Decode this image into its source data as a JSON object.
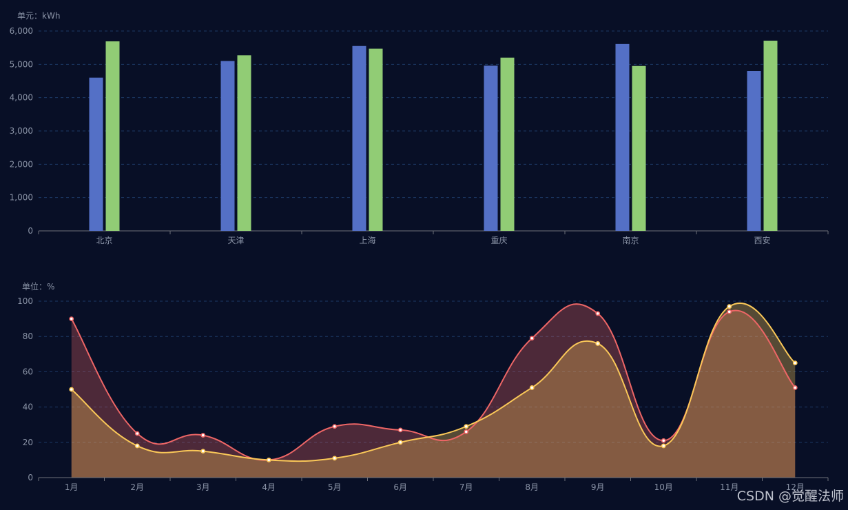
{
  "chart_data": [
    {
      "type": "bar",
      "unit_label": "单元：kWh",
      "categories": [
        "北京",
        "天津",
        "上海",
        "重庆",
        "南京",
        "西安"
      ],
      "series": [
        {
          "color": "#5470c6",
          "values": [
            4600,
            5100,
            5550,
            4960,
            5610,
            4800
          ]
        },
        {
          "color": "#91cc75",
          "values": [
            5690,
            5270,
            5470,
            5200,
            4950,
            5710
          ]
        }
      ],
      "ylim": [
        0,
        6000
      ],
      "yticks": [
        0,
        1000,
        2000,
        3000,
        4000,
        5000,
        6000
      ],
      "ytick_labels": [
        "0",
        "1,000",
        "2,000",
        "3,000",
        "4,000",
        "5,000",
        "6,000"
      ],
      "grid": true,
      "grid_style": "dashed"
    },
    {
      "type": "area",
      "unit_label": "单位：%",
      "categories": [
        "1月",
        "2月",
        "3月",
        "4月",
        "5月",
        "6月",
        "7月",
        "8月",
        "9月",
        "10月",
        "11月",
        "12月"
      ],
      "series": [
        {
          "color": "#ee6666",
          "values": [
            90,
            25,
            24,
            10,
            29,
            27,
            26,
            79,
            93,
            21,
            94,
            51
          ]
        },
        {
          "color": "#fac858",
          "values": [
            50,
            18,
            15,
            10,
            11,
            20,
            29,
            51,
            76,
            18,
            97,
            65
          ]
        }
      ],
      "ylim": [
        0,
        100
      ],
      "yticks": [
        0,
        20,
        40,
        60,
        80,
        100
      ],
      "ytick_labels": [
        "0",
        "20",
        "40",
        "60",
        "80",
        "100"
      ],
      "grid": true,
      "grid_style": "dashed",
      "smooth": true
    }
  ],
  "watermark": "CSDN @觉醒法师"
}
